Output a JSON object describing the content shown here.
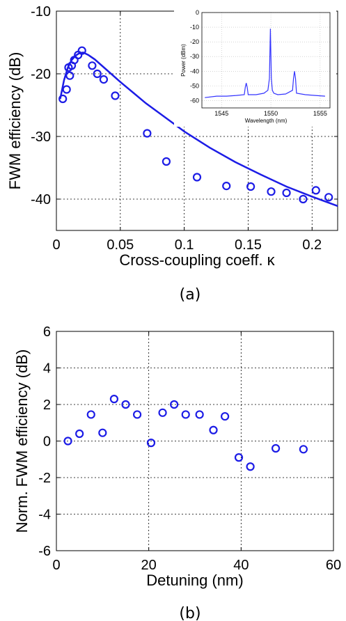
{
  "chart_data": [
    {
      "type": "scatter",
      "panel": "(a)",
      "xlabel": "Cross-coupling coeff. κ",
      "ylabel": "FWM efficiency (dB)",
      "xlim": [
        0,
        0.22
      ],
      "ylim": [
        -45,
        -10
      ],
      "xticks": [
        "0",
        "0.05",
        "0.1",
        "0.15",
        "0.2"
      ],
      "yticks": [
        "-10",
        "-20",
        "-30",
        "-40"
      ],
      "grid": true,
      "marker_color": "#1c1ce6",
      "line_color": "#1c1ce6",
      "series": [
        {
          "kind": "markers",
          "x": [
            0.005,
            0.008,
            0.0095,
            0.0105,
            0.012,
            0.014,
            0.017,
            0.02,
            0.028,
            0.032,
            0.037,
            0.046,
            0.071,
            0.086,
            0.11,
            0.133,
            0.152,
            0.168,
            0.18,
            0.193,
            0.203,
            0.213
          ],
          "y": [
            -24.0,
            -22.5,
            -19.0,
            -20.3,
            -18.7,
            -17.8,
            -17.0,
            -16.3,
            -18.7,
            -20.0,
            -20.9,
            -23.5,
            -29.5,
            -34.0,
            -36.5,
            -37.9,
            -38.0,
            -38.8,
            -39.0,
            -40.0,
            -38.6,
            -39.7
          ]
        },
        {
          "kind": "line",
          "x": [
            0.003,
            0.006,
            0.009,
            0.012,
            0.015,
            0.018,
            0.021,
            0.025,
            0.03,
            0.04,
            0.05,
            0.06,
            0.07,
            0.08,
            0.09,
            0.1,
            0.12,
            0.14,
            0.16,
            0.18,
            0.2,
            0.22
          ],
          "y": [
            -24.0,
            -21.0,
            -19.0,
            -17.8,
            -17.1,
            -16.7,
            -16.6,
            -17.0,
            -17.7,
            -19.5,
            -21.3,
            -23.0,
            -24.7,
            -26.2,
            -27.7,
            -29.2,
            -31.8,
            -34.1,
            -36.1,
            -38.0,
            -39.6,
            -41.1
          ]
        }
      ],
      "inset": {
        "type": "line",
        "xlabel": "Wavelength (nm)",
        "ylabel": "Power (dBm)",
        "xlim": [
          1543,
          1556
        ],
        "ylim": [
          -65,
          0
        ],
        "xticks": [
          "1545",
          "1550",
          "1555"
        ],
        "yticks": [
          "0",
          "-10",
          "-20",
          "-30",
          "-40",
          "-50",
          "-60"
        ],
        "grid": true,
        "line_color": "#3333ff",
        "series": [
          {
            "x": [
              1543.3,
              1544.5,
              1545.5,
              1546.5,
              1547.3,
              1547.4,
              1547.5,
              1547.6,
              1547.7,
              1548.5,
              1549.3,
              1549.7,
              1549.85,
              1549.95,
              1550.05,
              1550.15,
              1550.3,
              1550.7,
              1551.5,
              1552.2,
              1552.3,
              1552.4,
              1552.5,
              1552.6,
              1553.5,
              1554.5,
              1555.5
            ],
            "y": [
              -58,
              -57,
              -57,
              -56.5,
              -56,
              -51,
              -48,
              -51,
              -56,
              -56,
              -55,
              -53,
              -45,
              -11,
              -45,
              -53,
              -55,
              -56,
              -55.5,
              -53,
              -45,
              -40,
              -45,
              -55,
              -56,
              -56.5,
              -57
            ]
          }
        ]
      }
    },
    {
      "type": "scatter",
      "panel": "(b)",
      "xlabel": "Detuning (nm)",
      "ylabel": "Norm. FWM efficiency (dB)",
      "xlim": [
        0,
        60
      ],
      "ylim": [
        -6,
        6
      ],
      "xticks": [
        "0",
        "20",
        "40",
        "60"
      ],
      "yticks": [
        "6",
        "4",
        "2",
        "0",
        "-2",
        "-4",
        "-6"
      ],
      "grid": true,
      "marker_color": "#1c1ce6",
      "series": [
        {
          "kind": "markers",
          "x": [
            2.5,
            5,
            7.5,
            10,
            12.5,
            15,
            17.5,
            20.5,
            23,
            25.5,
            28,
            31,
            34,
            36.5,
            39.5,
            42,
            47.5,
            53.5
          ],
          "y": [
            0.0,
            0.4,
            1.45,
            0.45,
            2.3,
            2.0,
            1.45,
            -0.1,
            1.55,
            2.0,
            1.45,
            1.45,
            0.6,
            1.35,
            -0.9,
            -1.4,
            -0.4,
            -0.45
          ]
        }
      ]
    }
  ]
}
